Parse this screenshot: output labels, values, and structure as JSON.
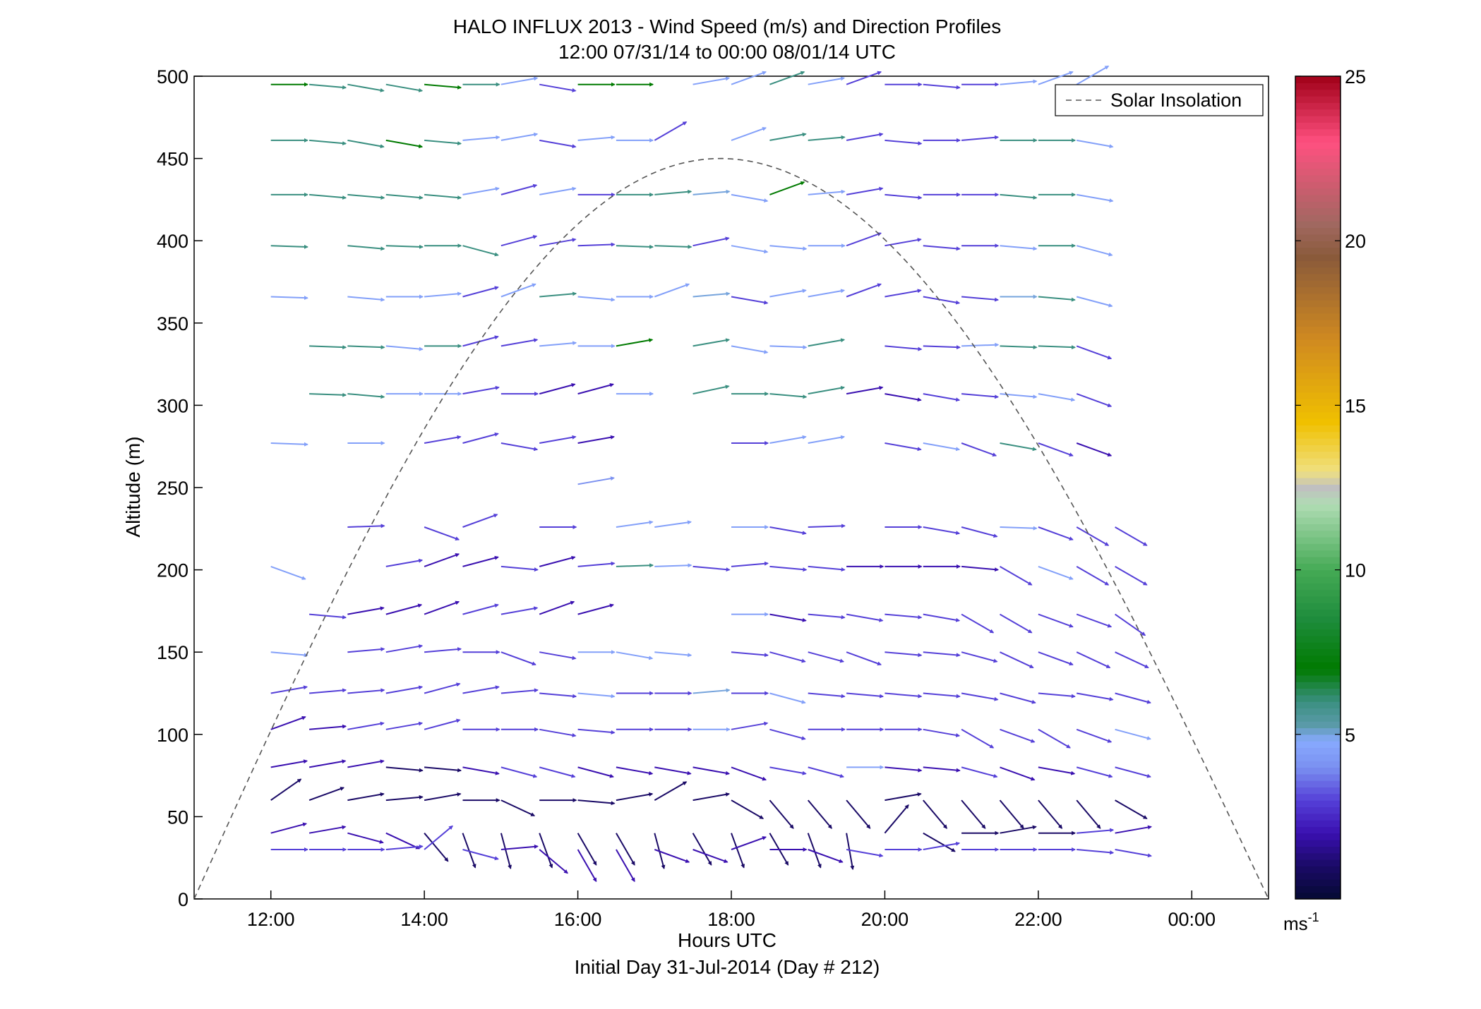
{
  "chart_data": {
    "type": "scatter",
    "title": "HALO INFLUX 2013 - Wind Speed (m/s) and Direction Profiles",
    "subtitle": "12:00 07/31/14 to 00:00 08/01/14  UTC",
    "xlabel": "Hours UTC",
    "xlabel2": "Initial Day 31-Jul-2014 (Day # 212)",
    "ylabel": "Altitude (m)",
    "xlim": [
      11,
      25
    ],
    "ylim": [
      0,
      500
    ],
    "x_ticks": [
      {
        "value": 12,
        "label": "12:00"
      },
      {
        "value": 14,
        "label": "14:00"
      },
      {
        "value": 16,
        "label": "16:00"
      },
      {
        "value": 18,
        "label": "18:00"
      },
      {
        "value": 20,
        "label": "20:00"
      },
      {
        "value": 22,
        "label": "22:00"
      },
      {
        "value": 24,
        "label": "00:00"
      }
    ],
    "y_ticks": [
      0,
      50,
      100,
      150,
      200,
      250,
      300,
      350,
      400,
      450,
      500
    ],
    "legend": {
      "placement": "top-right",
      "entries": [
        "Solar Insolation"
      ]
    },
    "colorbar": {
      "min": 0,
      "max": 25,
      "ticks": [
        5,
        10,
        15,
        20,
        25
      ],
      "unit": "ms",
      "unit_exponent": "-1",
      "stops": [
        {
          "v": 0,
          "c": "#050a33"
        },
        {
          "v": 1,
          "c": "#1a0a66"
        },
        {
          "v": 2,
          "c": "#3a10b0"
        },
        {
          "v": 3,
          "c": "#5540d8"
        },
        {
          "v": 4,
          "c": "#7a90f0"
        },
        {
          "v": 4.8,
          "c": "#88aaff"
        },
        {
          "v": 5.3,
          "c": "#5a9aa8"
        },
        {
          "v": 6,
          "c": "#3a8f80"
        },
        {
          "v": 7,
          "c": "#007a00"
        },
        {
          "v": 8.5,
          "c": "#1e8c3c"
        },
        {
          "v": 10,
          "c": "#45aa55"
        },
        {
          "v": 12,
          "c": "#b0dcb4"
        },
        {
          "v": 12.5,
          "c": "#c0c0c0"
        },
        {
          "v": 13,
          "c": "#f0e080"
        },
        {
          "v": 14.5,
          "c": "#f0c000"
        },
        {
          "v": 17,
          "c": "#d08a20"
        },
        {
          "v": 19.5,
          "c": "#8a5a3a"
        },
        {
          "v": 20.5,
          "c": "#a06860"
        },
        {
          "v": 23,
          "c": "#ff5080"
        },
        {
          "v": 25,
          "c": "#a00018"
        }
      ]
    },
    "solar_insolation": {
      "start": 11,
      "peak_hour": 17.85,
      "peak_alt": 450,
      "end": 25
    },
    "altitudes": [
      30,
      40,
      60,
      80,
      103,
      125,
      150,
      173,
      202,
      226,
      252,
      277,
      307,
      336,
      366,
      397,
      428,
      461,
      495
    ],
    "hours": [
      12,
      12.5,
      13,
      13.5,
      14,
      14.5,
      15,
      15.5,
      16,
      16.5,
      17,
      17.5,
      18,
      18.5,
      19,
      19.5,
      20,
      20.5,
      21,
      21.5,
      22,
      22.5,
      23
    ],
    "rows": [
      {
        "alt": 495,
        "s": [
          7,
          6,
          6,
          6,
          7,
          6,
          4.5,
          3,
          7,
          7,
          null,
          4.5,
          4.5,
          6,
          4.5,
          3,
          3,
          3,
          3,
          4.5,
          4.5,
          4.5,
          null
        ],
        "d": [
          90,
          95,
          100,
          100,
          95,
          90,
          80,
          100,
          90,
          90,
          null,
          80,
          70,
          70,
          80,
          70,
          90,
          95,
          90,
          85,
          70,
          60,
          null
        ]
      },
      {
        "alt": 461,
        "s": [
          6,
          6,
          6,
          7,
          6,
          4.5,
          4.5,
          3,
          4.5,
          4.5,
          3,
          null,
          4.5,
          6,
          6,
          3,
          3,
          3,
          3,
          6,
          6,
          4.5,
          null
        ],
        "d": [
          90,
          95,
          100,
          100,
          95,
          85,
          80,
          100,
          85,
          90,
          60,
          null,
          70,
          80,
          85,
          80,
          95,
          90,
          85,
          90,
          90,
          100,
          null
        ]
      },
      {
        "alt": 428,
        "s": [
          6,
          6,
          6,
          6,
          6,
          4.5,
          3,
          4.5,
          3,
          6,
          6,
          5,
          4.5,
          7,
          4.5,
          3,
          3,
          3,
          3,
          6,
          6,
          4.5,
          null
        ],
        "d": [
          90,
          95,
          95,
          95,
          95,
          80,
          75,
          80,
          90,
          90,
          85,
          85,
          100,
          70,
          85,
          80,
          95,
          90,
          90,
          95,
          90,
          100,
          null
        ]
      },
      {
        "alt": 397,
        "s": [
          6,
          null,
          6,
          6,
          6,
          6,
          3,
          3,
          3,
          6,
          6,
          3,
          4.5,
          4.5,
          4.5,
          3,
          3,
          3,
          3,
          4.5,
          6,
          4.5,
          null
        ],
        "d": [
          92,
          null,
          95,
          92,
          90,
          105,
          75,
          80,
          88,
          92,
          92,
          78,
          100,
          95,
          90,
          70,
          80,
          95,
          90,
          95,
          90,
          105,
          null
        ]
      },
      {
        "alt": 366,
        "s": [
          4.5,
          null,
          4.5,
          4.5,
          4.5,
          3,
          4.5,
          6,
          4.5,
          4.5,
          4.5,
          5,
          3,
          4.5,
          4.5,
          3,
          3,
          3,
          3,
          5,
          6,
          4.5,
          null
        ],
        "d": [
          92,
          null,
          95,
          90,
          85,
          75,
          70,
          85,
          95,
          90,
          70,
          85,
          100,
          80,
          80,
          70,
          80,
          100,
          95,
          90,
          95,
          105,
          null
        ]
      },
      {
        "alt": 336,
        "s": [
          null,
          6,
          6,
          4.5,
          6,
          3,
          3,
          4.5,
          4.5,
          7,
          null,
          6,
          4.5,
          4.5,
          6,
          null,
          3,
          3,
          4.5,
          6,
          6,
          3,
          null
        ],
        "d": [
          null,
          92,
          92,
          95,
          90,
          75,
          80,
          85,
          90,
          80,
          null,
          80,
          100,
          92,
          80,
          null,
          95,
          92,
          88,
          92,
          92,
          110,
          null
        ]
      },
      {
        "alt": 307,
        "s": [
          null,
          6,
          6,
          4.5,
          4.5,
          3,
          3,
          2,
          2,
          4.5,
          null,
          6,
          6,
          6,
          6,
          2,
          2,
          3,
          3,
          4.5,
          4.5,
          3,
          null
        ],
        "d": [
          null,
          92,
          95,
          90,
          90,
          80,
          90,
          75,
          75,
          90,
          null,
          78,
          90,
          95,
          80,
          80,
          100,
          100,
          95,
          95,
          100,
          110,
          null
        ]
      },
      {
        "alt": 277,
        "s": [
          4.5,
          null,
          4.5,
          null,
          3,
          3,
          3,
          3,
          2,
          null,
          null,
          null,
          3,
          4.5,
          4.5,
          null,
          3,
          4.5,
          3,
          6,
          3,
          2,
          null
        ],
        "d": [
          92,
          null,
          90,
          null,
          80,
          75,
          100,
          80,
          80,
          null,
          null,
          null,
          90,
          80,
          80,
          null,
          100,
          100,
          110,
          100,
          110,
          110,
          null
        ]
      },
      {
        "alt": 252,
        "s": [
          null,
          null,
          null,
          null,
          null,
          null,
          null,
          null,
          4,
          null,
          null,
          null,
          null,
          null,
          null,
          null,
          null,
          null,
          null,
          null,
          null,
          null,
          null
        ],
        "d": [
          null,
          null,
          null,
          null,
          null,
          null,
          null,
          null,
          80,
          null,
          null,
          null,
          null,
          null,
          null,
          null,
          null,
          null,
          null,
          null,
          null,
          null,
          null
        ]
      },
      {
        "alt": 226,
        "s": [
          null,
          null,
          3,
          null,
          3,
          3,
          null,
          3,
          null,
          4.5,
          4.5,
          null,
          4.5,
          3,
          3,
          null,
          3,
          3,
          3,
          4.5,
          3,
          3,
          3
        ],
        "d": [
          null,
          null,
          88,
          null,
          110,
          70,
          null,
          90,
          null,
          82,
          82,
          null,
          90,
          100,
          88,
          null,
          90,
          100,
          105,
          92,
          110,
          120,
          120
        ]
      },
      {
        "alt": 202,
        "s": [
          4.5,
          null,
          null,
          3,
          2,
          2,
          3,
          2,
          3,
          6,
          4.5,
          3,
          3,
          3,
          3,
          2,
          2,
          2,
          2,
          3,
          4.5,
          3,
          3
        ],
        "d": [
          110,
          null,
          null,
          80,
          70,
          75,
          95,
          75,
          85,
          88,
          88,
          95,
          85,
          95,
          95,
          90,
          90,
          90,
          95,
          120,
          110,
          120,
          120
        ]
      },
      {
        "alt": 173,
        "s": [
          null,
          3,
          2,
          2,
          2,
          3,
          3,
          2,
          2,
          null,
          null,
          null,
          4.5,
          2,
          3,
          3,
          3,
          3,
          3,
          3,
          3,
          3,
          3
        ],
        "d": [
          null,
          95,
          80,
          75,
          70,
          75,
          80,
          70,
          75,
          null,
          null,
          null,
          90,
          100,
          95,
          100,
          95,
          100,
          120,
          120,
          110,
          110,
          125
        ]
      },
      {
        "alt": 150,
        "s": [
          4.5,
          null,
          3,
          3,
          3,
          3,
          3,
          3,
          4.5,
          4.5,
          4.5,
          null,
          3,
          3,
          3,
          3,
          3,
          3,
          3,
          3,
          3,
          3,
          3
        ],
        "d": [
          95,
          null,
          85,
          80,
          85,
          90,
          110,
          100,
          90,
          100,
          95,
          null,
          95,
          105,
          105,
          110,
          95,
          95,
          105,
          115,
          110,
          115,
          115
        ]
      },
      {
        "alt": 125,
        "s": [
          3,
          3,
          3,
          3,
          3,
          3,
          3,
          3,
          4.5,
          3,
          3,
          5,
          3,
          4.5,
          3,
          3,
          3,
          3,
          3,
          3,
          3,
          3,
          3
        ],
        "d": [
          80,
          85,
          85,
          80,
          75,
          80,
          85,
          95,
          95,
          90,
          90,
          85,
          90,
          105,
          95,
          95,
          95,
          95,
          100,
          105,
          95,
          100,
          105
        ]
      },
      {
        "alt": 103,
        "s": [
          2,
          2,
          3,
          3,
          3,
          3,
          3,
          3,
          3,
          3,
          3,
          4.5,
          3,
          3,
          3,
          3,
          3,
          3,
          3,
          3,
          3,
          3,
          4.5
        ],
        "d": [
          70,
          85,
          80,
          80,
          75,
          90,
          90,
          100,
          95,
          90,
          90,
          90,
          80,
          105,
          90,
          90,
          90,
          100,
          120,
          110,
          120,
          110,
          105
        ]
      },
      {
        "alt": 80,
        "s": [
          2,
          2,
          2,
          1,
          1,
          2,
          3,
          3,
          2,
          2,
          2,
          2,
          2,
          3,
          3,
          4.5,
          2,
          2,
          3,
          2,
          2,
          3,
          3
        ],
        "d": [
          80,
          80,
          80,
          95,
          95,
          100,
          105,
          105,
          105,
          100,
          100,
          100,
          110,
          100,
          105,
          90,
          95,
          95,
          105,
          110,
          100,
          105,
          105
        ]
      },
      {
        "alt": 60,
        "s": [
          1,
          1,
          1,
          1,
          1,
          1,
          1,
          1,
          1,
          1,
          1,
          1,
          1,
          1,
          1,
          1,
          1,
          1,
          1,
          1,
          1,
          1,
          1
        ],
        "d": [
          55,
          70,
          80,
          85,
          80,
          90,
          115,
          90,
          95,
          80,
          60,
          80,
          120,
          140,
          140,
          140,
          80,
          140,
          140,
          140,
          140,
          140,
          120
        ]
      },
      {
        "alt": 40,
        "s": [
          2,
          2,
          2,
          2,
          1,
          1,
          1,
          1,
          1,
          1,
          1,
          1,
          1,
          1,
          1,
          1,
          1,
          1,
          1,
          1,
          1,
          3,
          2
        ],
        "d": [
          75,
          80,
          105,
          115,
          140,
          160,
          165,
          160,
          150,
          150,
          165,
          150,
          160,
          150,
          160,
          170,
          40,
          120,
          90,
          80,
          90,
          85,
          80
        ]
      },
      {
        "alt": 30,
        "s": [
          3,
          3,
          3,
          3,
          3,
          3,
          2,
          2,
          2,
          2,
          2,
          2,
          2,
          2,
          2,
          3,
          3,
          3,
          3,
          3,
          3,
          3,
          3
        ],
        "d": [
          90,
          90,
          90,
          85,
          50,
          105,
          85,
          130,
          150,
          150,
          110,
          110,
          70,
          90,
          110,
          100,
          90,
          80,
          90,
          90,
          90,
          95,
          100
        ]
      }
    ]
  }
}
